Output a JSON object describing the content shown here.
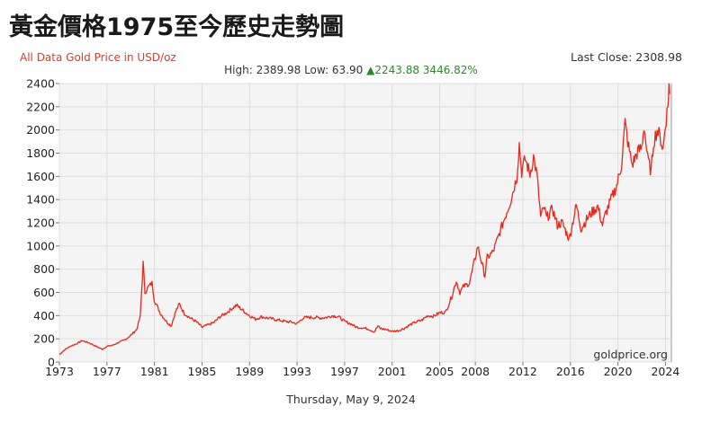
{
  "page": {
    "title": "黃金價格1975至今歷史走勢圖",
    "subtitle": "All Data Gold Price in USD/oz",
    "last_close": "Last Close: 2308.98",
    "high_label": "High:",
    "high_value": "2389.98",
    "low_label": "Low:",
    "low_value": "63.90",
    "change_arrow": "▲",
    "change_value": "2243.88",
    "change_pct": "3446.82%",
    "watermark": "goldprice.org",
    "date": "Thursday, May 9, 2024"
  },
  "colors": {
    "line": "#e8271c",
    "grid": "#dddddd",
    "plot_bg": "#f4f4f4",
    "up": "#2a8a2a",
    "subtitle": "#e03a2a"
  },
  "chart_data": {
    "type": "line",
    "title": "黃金價格1975至今歷史走勢圖",
    "xlabel": "",
    "ylabel": "",
    "xlim": [
      1973.0,
      2024.5
    ],
    "ylim": [
      0,
      2400
    ],
    "yticks": [
      0,
      200,
      400,
      600,
      800,
      1000,
      1200,
      1400,
      1600,
      1800,
      2000,
      2200,
      2400
    ],
    "xticks": [
      1973,
      1977,
      1981,
      1985,
      1989,
      1993,
      1997,
      2001,
      2005,
      2008,
      2012,
      2016,
      2020,
      2024
    ],
    "xtick_labels": [
      "1973",
      "1977",
      "1981",
      "1985",
      "1989",
      "1993",
      "1997",
      "2001",
      "2005",
      "2008",
      "2012",
      "2016",
      "2020",
      "2024"
    ],
    "grid": true,
    "legend": "none",
    "series": [
      {
        "values": [
          [
            1973.0,
            65
          ],
          [
            1973.5,
            110
          ],
          [
            1974.0,
            140
          ],
          [
            1974.5,
            160
          ],
          [
            1974.9,
            185
          ],
          [
            1975.5,
            165
          ],
          [
            1976.0,
            140
          ],
          [
            1976.6,
            110
          ],
          [
            1977.0,
            135
          ],
          [
            1977.5,
            145
          ],
          [
            1978.0,
            170
          ],
          [
            1978.5,
            190
          ],
          [
            1979.0,
            230
          ],
          [
            1979.5,
            280
          ],
          [
            1979.8,
            390
          ],
          [
            1980.05,
            850
          ],
          [
            1980.2,
            600
          ],
          [
            1980.5,
            650
          ],
          [
            1980.8,
            680
          ],
          [
            1981.0,
            530
          ],
          [
            1981.5,
            420
          ],
          [
            1982.0,
            350
          ],
          [
            1982.4,
            310
          ],
          [
            1982.8,
            440
          ],
          [
            1983.1,
            500
          ],
          [
            1983.5,
            420
          ],
          [
            1984.0,
            380
          ],
          [
            1984.5,
            350
          ],
          [
            1985.0,
            300
          ],
          [
            1985.5,
            320
          ],
          [
            1986.0,
            340
          ],
          [
            1986.5,
            390
          ],
          [
            1987.0,
            420
          ],
          [
            1987.5,
            460
          ],
          [
            1987.9,
            490
          ],
          [
            1988.5,
            440
          ],
          [
            1989.0,
            400
          ],
          [
            1989.5,
            370
          ],
          [
            1990.0,
            390
          ],
          [
            1990.5,
            380
          ],
          [
            1991.0,
            370
          ],
          [
            1991.5,
            360
          ],
          [
            1992.0,
            350
          ],
          [
            1992.5,
            345
          ],
          [
            1993.0,
            330
          ],
          [
            1993.5,
            380
          ],
          [
            1994.0,
            385
          ],
          [
            1994.5,
            385
          ],
          [
            1995.0,
            380
          ],
          [
            1995.5,
            385
          ],
          [
            1996.0,
            400
          ],
          [
            1996.5,
            390
          ],
          [
            1997.0,
            350
          ],
          [
            1997.5,
            330
          ],
          [
            1998.0,
            300
          ],
          [
            1998.5,
            295
          ],
          [
            1999.0,
            285
          ],
          [
            1999.5,
            260
          ],
          [
            1999.8,
            310
          ],
          [
            2000.0,
            290
          ],
          [
            2000.5,
            280
          ],
          [
            2001.0,
            265
          ],
          [
            2001.5,
            270
          ],
          [
            2002.0,
            290
          ],
          [
            2002.5,
            320
          ],
          [
            2003.0,
            345
          ],
          [
            2003.5,
            360
          ],
          [
            2004.0,
            400
          ],
          [
            2004.5,
            395
          ],
          [
            2005.0,
            425
          ],
          [
            2005.5,
            430
          ],
          [
            2006.0,
            560
          ],
          [
            2006.4,
            700
          ],
          [
            2006.7,
            600
          ],
          [
            2007.0,
            650
          ],
          [
            2007.5,
            680
          ],
          [
            2008.0,
            900
          ],
          [
            2008.2,
            1000
          ],
          [
            2008.6,
            830
          ],
          [
            2008.8,
            740
          ],
          [
            2009.0,
            900
          ],
          [
            2009.5,
            950
          ],
          [
            2010.0,
            1100
          ],
          [
            2010.5,
            1250
          ],
          [
            2011.0,
            1400
          ],
          [
            2011.5,
            1600
          ],
          [
            2011.7,
            1880
          ],
          [
            2011.9,
            1640
          ],
          [
            2012.2,
            1750
          ],
          [
            2012.6,
            1620
          ],
          [
            2012.9,
            1770
          ],
          [
            2013.2,
            1600
          ],
          [
            2013.5,
            1250
          ],
          [
            2013.8,
            1330
          ],
          [
            2014.0,
            1240
          ],
          [
            2014.5,
            1320
          ],
          [
            2014.9,
            1180
          ],
          [
            2015.3,
            1200
          ],
          [
            2015.9,
            1060
          ],
          [
            2016.5,
            1350
          ],
          [
            2016.9,
            1150
          ],
          [
            2017.5,
            1250
          ],
          [
            2017.9,
            1300
          ],
          [
            2018.3,
            1340
          ],
          [
            2018.7,
            1180
          ],
          [
            2019.0,
            1290
          ],
          [
            2019.5,
            1420
          ],
          [
            2019.9,
            1520
          ],
          [
            2020.3,
            1700
          ],
          [
            2020.6,
            2060
          ],
          [
            2020.9,
            1850
          ],
          [
            2021.2,
            1700
          ],
          [
            2021.6,
            1800
          ],
          [
            2022.0,
            1850
          ],
          [
            2022.2,
            2040
          ],
          [
            2022.5,
            1750
          ],
          [
            2022.8,
            1640
          ],
          [
            2023.0,
            1900
          ],
          [
            2023.3,
            2000
          ],
          [
            2023.6,
            1920
          ],
          [
            2023.8,
            1830
          ],
          [
            2024.0,
            2050
          ],
          [
            2024.2,
            2200
          ],
          [
            2024.3,
            2390
          ],
          [
            2024.35,
            2309
          ]
        ]
      }
    ]
  }
}
